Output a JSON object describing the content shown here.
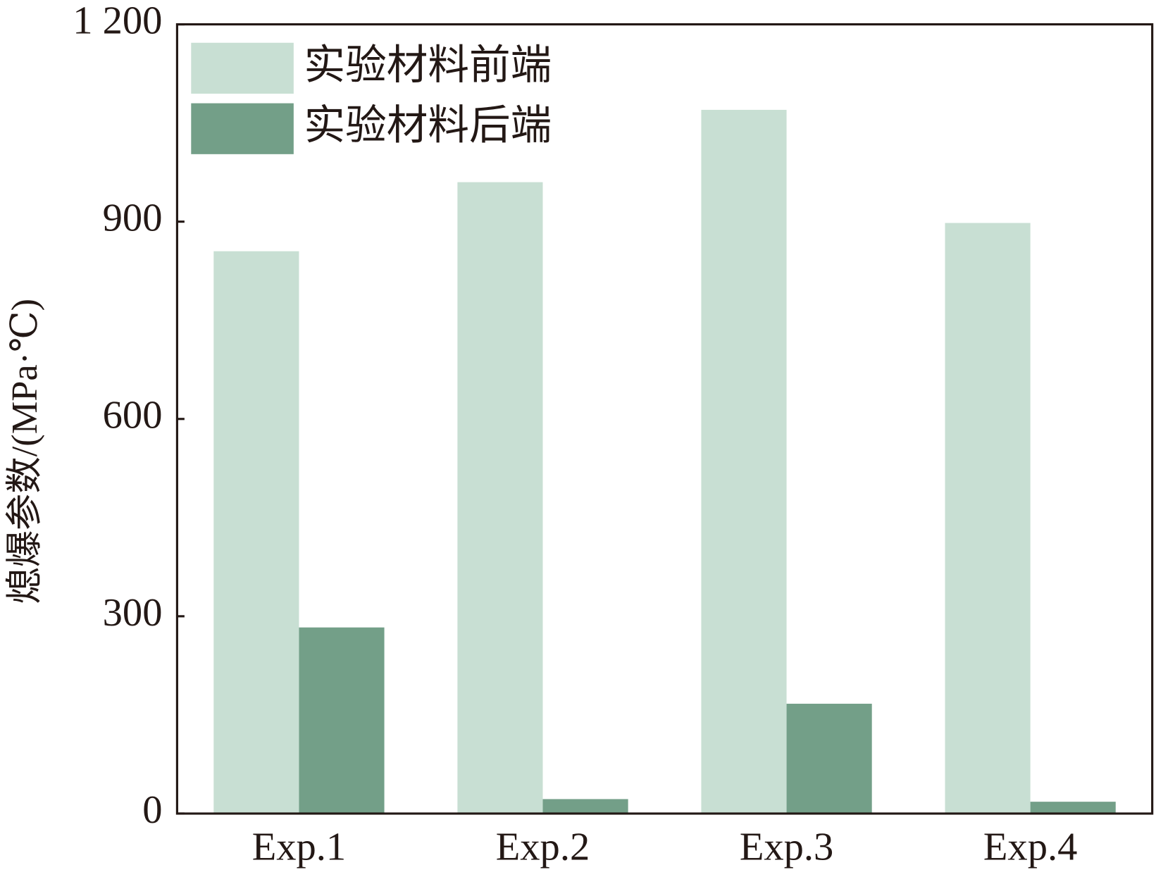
{
  "chart_data": {
    "type": "bar",
    "y_label": "熄爆参数/(MPa·℃)",
    "categories": [
      "Exp.1",
      "Exp.2",
      "Exp.3",
      "Exp.4"
    ],
    "series": [
      {
        "name": "实验材料前端",
        "color": "#c8dfd3",
        "values": [
          855,
          960,
          1070,
          898
        ]
      },
      {
        "name": "实验材料后端",
        "color": "#739f88",
        "values": [
          283,
          22,
          167,
          18
        ]
      }
    ],
    "ylim": [
      0,
      1200
    ],
    "yticks": [
      0,
      300,
      600,
      900,
      {
        "value": 1200,
        "label": "1 200"
      }
    ],
    "legend": "upper-left"
  }
}
